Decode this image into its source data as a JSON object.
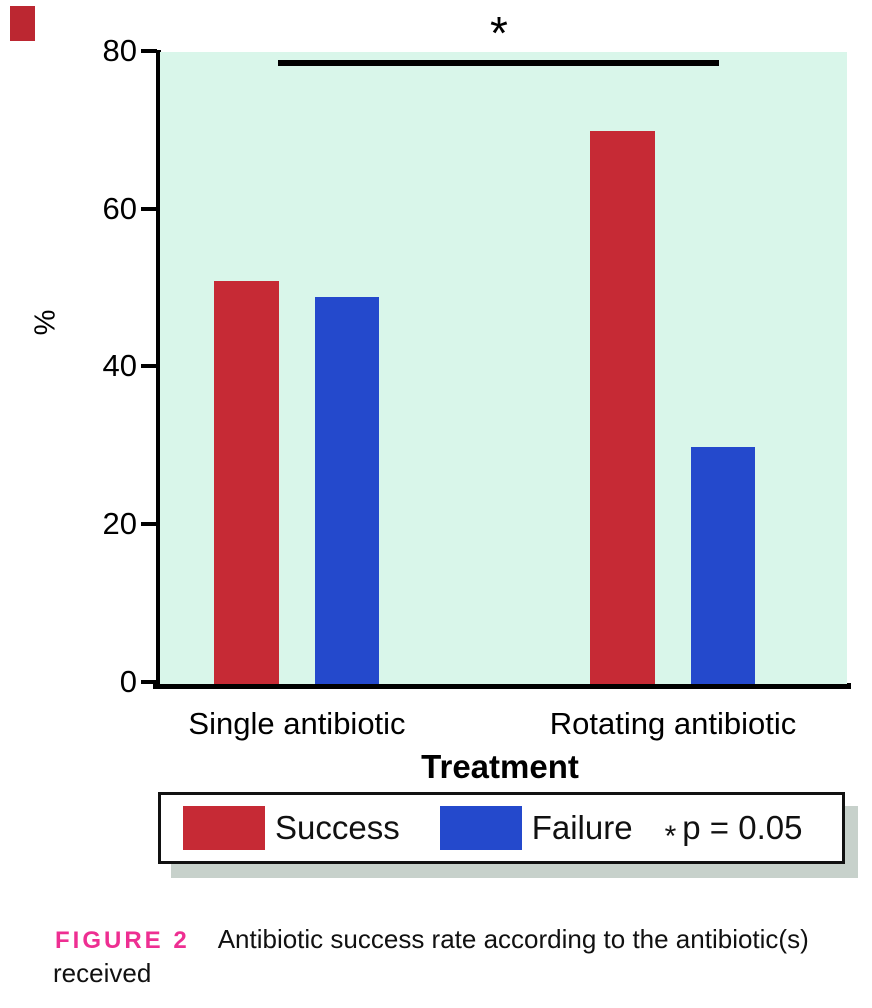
{
  "figure": {
    "label": "FIGURE 2",
    "label_color": "#ee2f92",
    "caption_text": "Antibiotic success rate according to the antibiotic(s)",
    "caption_text_line2": "received",
    "corner_marker_color": "#bc2731"
  },
  "chart_data": {
    "type": "bar",
    "categories": [
      "Single antibiotic",
      "Rotating antibiotic"
    ],
    "series": [
      {
        "name": "Success",
        "color": "#c62a35",
        "values": [
          51,
          70
        ]
      },
      {
        "name": "Failure",
        "color": "#2449cc",
        "values": [
          49,
          30
        ]
      }
    ],
    "xlabel": "Treatment",
    "ylabel": "%",
    "ylim": [
      0,
      80
    ],
    "yticks": [
      "80",
      "60",
      "40",
      "20",
      "0"
    ],
    "plot_background": "#d9f6ea",
    "grid": false,
    "significance": {
      "symbol": "*",
      "note_symbol": "*",
      "note_text": "p = 0.05"
    },
    "legend": {
      "position": "bottom",
      "entries": [
        "Success",
        "Failure"
      ],
      "shadow_color": "#c7d1cb"
    }
  }
}
